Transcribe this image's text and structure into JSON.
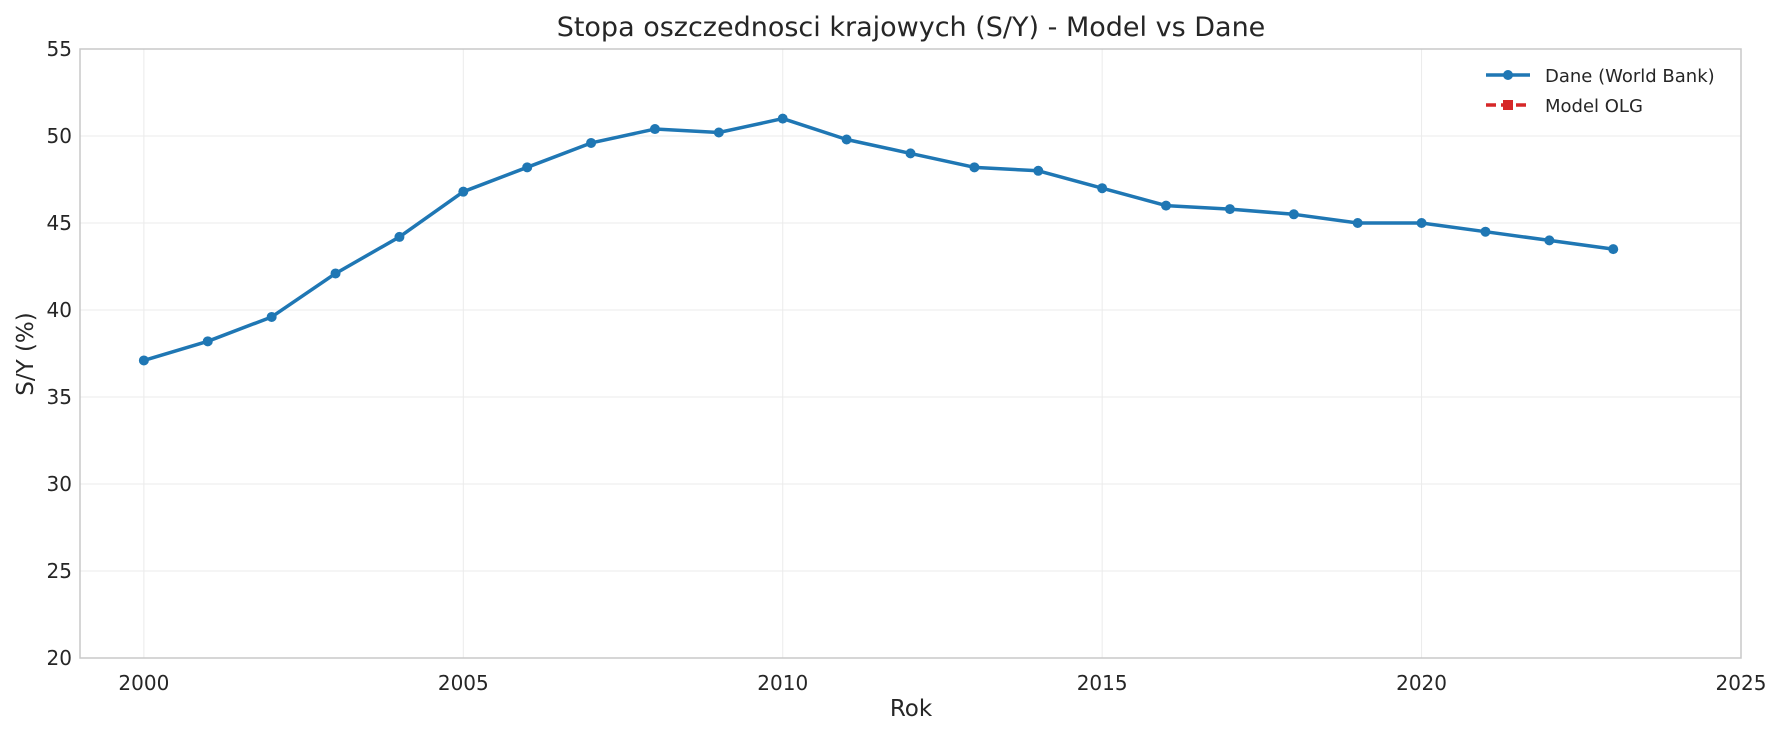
{
  "chart_data": {
    "type": "line",
    "title": "Stopa oszczednosci krajowych (S/Y) - Model vs Dane",
    "xlabel": "Rok",
    "ylabel": "S/Y (%)",
    "xlim": [
      1999,
      2025
    ],
    "ylim": [
      20,
      55
    ],
    "xticks": [
      2000,
      2005,
      2010,
      2015,
      2020,
      2025
    ],
    "yticks": [
      20,
      25,
      30,
      35,
      40,
      45,
      50,
      55
    ],
    "grid": true,
    "legend_position": "top-right",
    "series": [
      {
        "name": "Dane (World Bank)",
        "color": "#1f77b4",
        "marker": "circle",
        "x": [
          2000,
          2001,
          2002,
          2003,
          2004,
          2005,
          2006,
          2007,
          2008,
          2009,
          2010,
          2011,
          2012,
          2013,
          2014,
          2015,
          2016,
          2017,
          2018,
          2019,
          2020,
          2021,
          2022,
          2023
        ],
        "values": [
          37.1,
          38.2,
          39.6,
          42.1,
          44.2,
          46.8,
          48.2,
          49.6,
          50.4,
          50.2,
          51.0,
          49.8,
          49.0,
          48.2,
          48.0,
          47.0,
          46.0,
          45.8,
          45.5,
          45.0,
          45.0,
          44.5,
          44.0,
          43.5
        ]
      },
      {
        "name": "Model OLG",
        "color": "#d62728",
        "marker": "square",
        "x": [],
        "values": []
      }
    ]
  }
}
